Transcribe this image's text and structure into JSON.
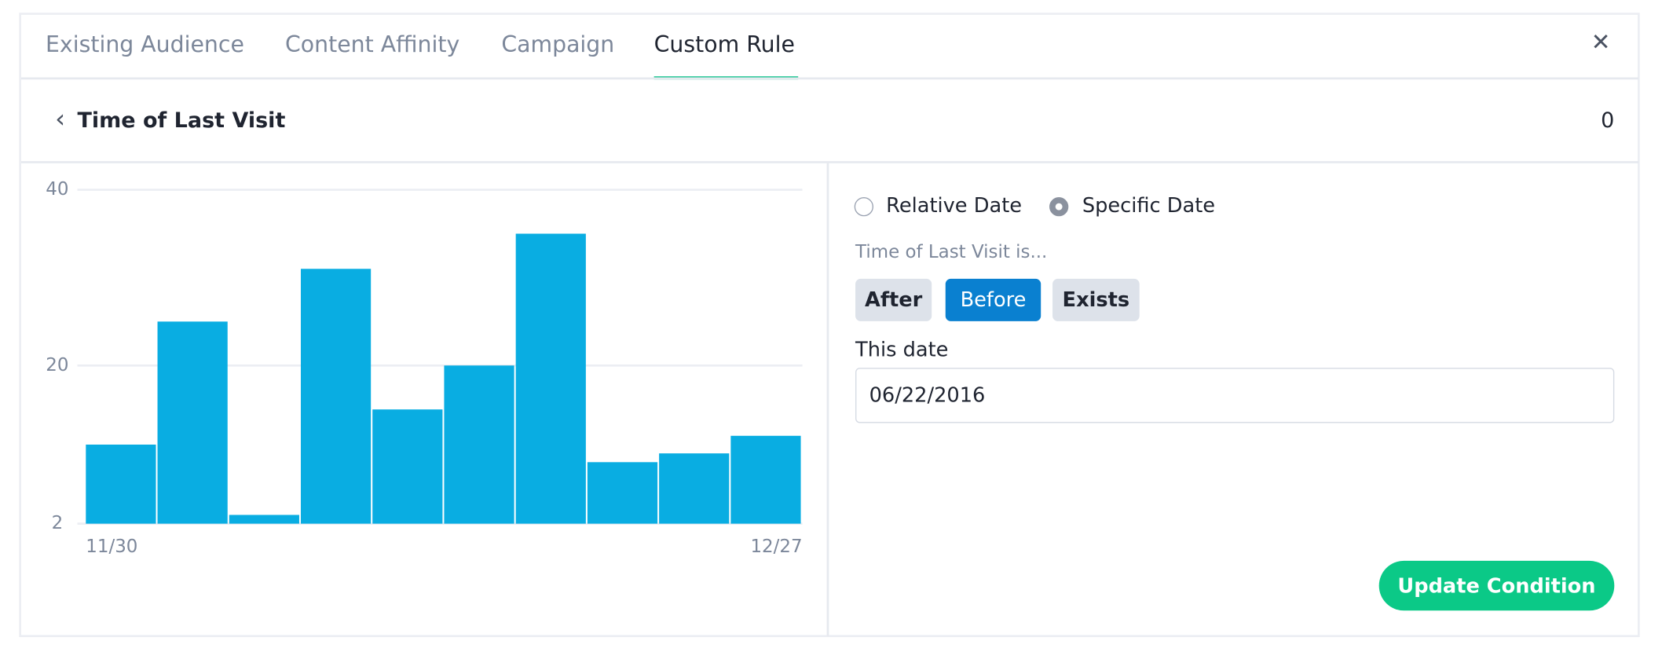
{
  "tabs": [
    "Existing Audience",
    "Content Affinity",
    "Campaign",
    "Custom Rule"
  ],
  "close": "✕",
  "header": {
    "back": "‹",
    "title": "Time of Last Visit",
    "count": "0"
  },
  "chart_data": {
    "type": "bar",
    "categories": [
      "11/30",
      null,
      null,
      null,
      null,
      null,
      null,
      null,
      null,
      "12/27"
    ],
    "values": [
      11,
      25,
      3,
      31,
      15,
      20,
      35,
      9,
      10,
      12
    ],
    "color": "#09ade2",
    "ylim": [
      2,
      40
    ],
    "yticks": [
      2,
      20,
      40
    ],
    "grid": true
  },
  "form": {
    "mode_options": [
      "Relative Date",
      "Specific Date"
    ],
    "selected_mode": 1,
    "condition_label": "Time of Last Visit is...",
    "operators": [
      "After",
      "Before",
      "Exists"
    ],
    "selected_operator": 1,
    "date_label": "This date",
    "date_value": "06/22/2016",
    "submit": "Update Condition"
  }
}
